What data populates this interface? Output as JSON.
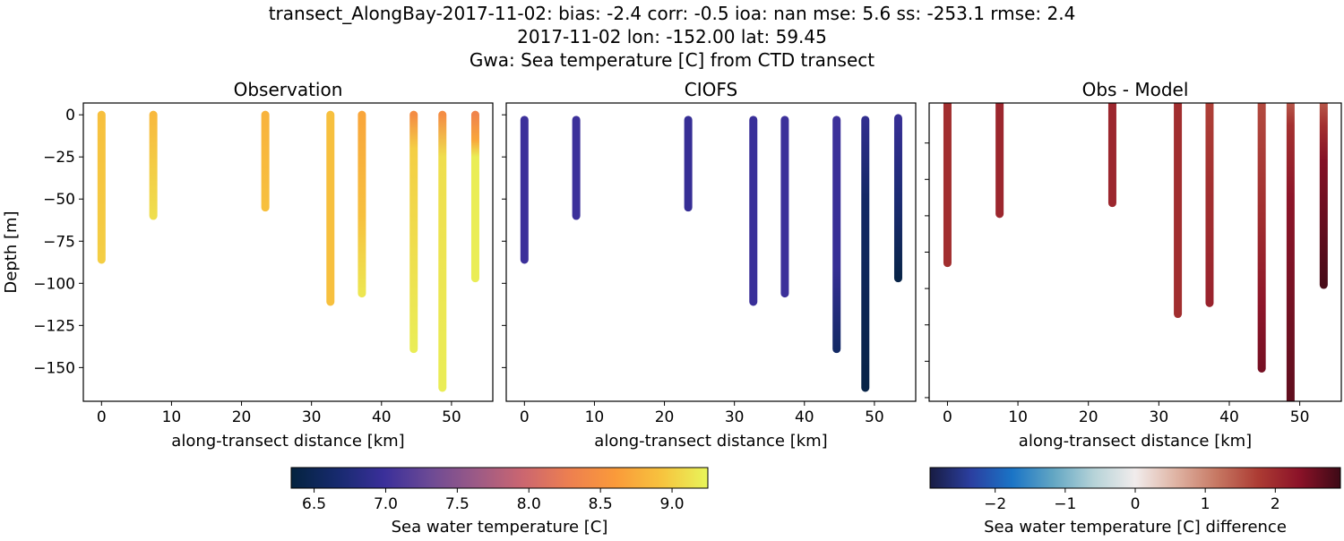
{
  "title_lines": [
    "transect_AlongBay-2017-11-02: bias: -2.4  corr: -0.5  ioa: nan  mse: 5.6  ss: -253.1  rmse: 2.4",
    "2017-11-02 lon: -152.00 lat: 59.45",
    "Gwa: Sea temperature [C] from CTD transect"
  ],
  "chart_data": [
    {
      "type": "scatter",
      "title": "Observation",
      "xlabel": "along-transect distance [km]",
      "ylabel": "Depth [m]",
      "xlim": [
        -2.6,
        55.9
      ],
      "ylim": [
        -170,
        7
      ],
      "xticks": [
        0,
        10,
        20,
        30,
        40,
        50
      ],
      "yticks": [
        0,
        -25,
        -50,
        -75,
        -100,
        -125,
        -150
      ],
      "ytick_labels": [
        "0",
        "−25",
        "−50",
        "−75",
        "−100",
        "−125",
        "−150"
      ],
      "colormap": "thermal",
      "stations": [
        {
          "x": 0,
          "profile": [
            [
              0,
              8.9
            ],
            [
              -86,
              9.0
            ]
          ]
        },
        {
          "x": 7.4,
          "profile": [
            [
              0,
              8.85
            ],
            [
              -60,
              9.1
            ]
          ]
        },
        {
          "x": 23.4,
          "profile": [
            [
              0,
              8.8
            ],
            [
              -55,
              8.9
            ]
          ]
        },
        {
          "x": 32.7,
          "profile": [
            [
              0,
              8.9
            ],
            [
              -111,
              8.9
            ]
          ]
        },
        {
          "x": 37.2,
          "profile": [
            [
              0,
              8.7
            ],
            [
              -60,
              8.9
            ],
            [
              -106,
              9.15
            ]
          ]
        },
        {
          "x": 44.6,
          "profile": [
            [
              0,
              8.45
            ],
            [
              -20,
              9.0
            ],
            [
              -139,
              9.2
            ]
          ]
        },
        {
          "x": 48.7,
          "profile": [
            [
              0,
              8.45
            ],
            [
              -25,
              9.1
            ],
            [
              -162,
              9.2
            ]
          ]
        },
        {
          "x": 53.4,
          "profile": [
            [
              0,
              8.35
            ],
            [
              -15,
              8.7
            ],
            [
              -25,
              9.2
            ],
            [
              -97,
              9.2
            ]
          ]
        }
      ]
    },
    {
      "type": "scatter",
      "title": "CIOFS",
      "xlabel": "along-transect distance [km]",
      "xlim": [
        -2.6,
        55.9
      ],
      "ylim": [
        -170,
        7
      ],
      "xticks": [
        0,
        10,
        20,
        30,
        40,
        50
      ],
      "yticks": [
        0,
        -25,
        -50,
        -75,
        -100,
        -125,
        -150
      ],
      "colormap": "thermal",
      "stations": [
        {
          "x": 0,
          "profile": [
            [
              -3,
              7.0
            ],
            [
              -86,
              7.0
            ]
          ]
        },
        {
          "x": 7.4,
          "profile": [
            [
              -3,
              7.0
            ],
            [
              -60,
              7.0
            ]
          ]
        },
        {
          "x": 23.4,
          "profile": [
            [
              -3,
              6.95
            ],
            [
              -55,
              6.95
            ]
          ]
        },
        {
          "x": 32.7,
          "profile": [
            [
              -3,
              6.98
            ],
            [
              -111,
              6.98
            ]
          ]
        },
        {
          "x": 37.2,
          "profile": [
            [
              -3,
              7.0
            ],
            [
              -106,
              7.0
            ]
          ]
        },
        {
          "x": 44.6,
          "profile": [
            [
              -3,
              7.0
            ],
            [
              -90,
              6.95
            ],
            [
              -139,
              6.6
            ]
          ]
        },
        {
          "x": 48.7,
          "profile": [
            [
              -3,
              6.9
            ],
            [
              -50,
              6.6
            ],
            [
              -162,
              6.4
            ]
          ]
        },
        {
          "x": 53.4,
          "profile": [
            [
              -2,
              6.95
            ],
            [
              -50,
              6.7
            ],
            [
              -97,
              6.4
            ]
          ]
        }
      ]
    },
    {
      "type": "scatter",
      "title": "Obs - Model",
      "xlabel": "along-transect distance [km]",
      "xlim": [
        -2.6,
        55.9
      ],
      "ylim": [
        -162,
        2
      ],
      "xticks": [
        0,
        10,
        20,
        30,
        40,
        50
      ],
      "yticks": [
        -20,
        -40,
        -60,
        -80,
        -100,
        -120,
        -140,
        -160
      ],
      "colormap": "balance",
      "stations": [
        {
          "x": 0,
          "profile": [
            [
              5,
              1.95
            ],
            [
              -86,
              1.95
            ]
          ]
        },
        {
          "x": 7.4,
          "profile": [
            [
              5,
              2.05
            ],
            [
              -59,
              2.05
            ]
          ]
        },
        {
          "x": 23.4,
          "profile": [
            [
              5,
              2.05
            ],
            [
              -53,
              2.05
            ]
          ]
        },
        {
          "x": 32.7,
          "profile": [
            [
              5,
              1.95
            ],
            [
              -114,
              1.95
            ]
          ]
        },
        {
          "x": 37.2,
          "profile": [
            [
              5,
              1.7
            ],
            [
              -40,
              1.9
            ],
            [
              -108,
              2.1
            ]
          ]
        },
        {
          "x": 44.6,
          "profile": [
            [
              5,
              1.6
            ],
            [
              -60,
              1.95
            ],
            [
              -110,
              2.3
            ],
            [
              -144,
              2.5
            ]
          ]
        },
        {
          "x": 48.7,
          "profile": [
            [
              5,
              1.4
            ],
            [
              -10,
              1.9
            ],
            [
              -50,
              2.3
            ],
            [
              -170,
              2.7
            ]
          ]
        },
        {
          "x": 53.4,
          "profile": [
            [
              5,
              1.4
            ],
            [
              -10,
              1.9
            ],
            [
              -30,
              2.4
            ],
            [
              -98,
              2.85
            ]
          ]
        }
      ]
    }
  ],
  "colorbars": [
    {
      "label": "Sea water temperature [C]",
      "range": [
        6.34,
        9.25
      ],
      "ticks": [
        6.5,
        7.0,
        7.5,
        8.0,
        8.5,
        9.0
      ],
      "tick_labels": [
        "6.5",
        "7.0",
        "7.5",
        "8.0",
        "8.5",
        "9.0"
      ],
      "colormap": "thermal",
      "stops": [
        "#04233f",
        "#172a6e",
        "#3a2f9a",
        "#6c4a95",
        "#9c5a86",
        "#cb6670",
        "#ed7f50",
        "#fa9a3a",
        "#f7c33e",
        "#e8f55a"
      ]
    },
    {
      "label": "Sea water temperature [C] difference",
      "range": [
        -2.93,
        2.93
      ],
      "ticks": [
        -2,
        -1,
        0,
        1,
        2
      ],
      "tick_labels": [
        "−2",
        "−1",
        "0",
        "1",
        "2"
      ],
      "colormap": "balance",
      "stops": [
        "#181c43",
        "#2b3fa0",
        "#1a74c6",
        "#62a6c3",
        "#b6d3d8",
        "#f1ecec",
        "#dfb3a3",
        "#c67762",
        "#ac3b33",
        "#8b1228",
        "#3d0a16"
      ]
    }
  ]
}
